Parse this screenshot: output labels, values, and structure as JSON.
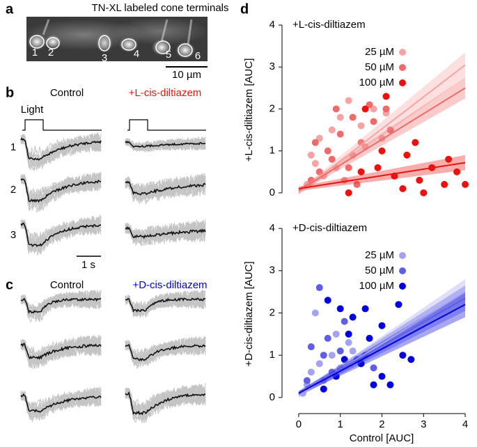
{
  "panels": {
    "a": {
      "letter": "a",
      "title": "TN-XL labeled cone terminals",
      "cells": [
        "1",
        "2",
        "3",
        "4",
        "5",
        "6"
      ],
      "scale": "10 µm"
    },
    "b": {
      "letter": "b",
      "control": "Control",
      "drug": "+L-cis-diltiazem",
      "light": "Light",
      "rows": [
        "1",
        "2",
        "3"
      ],
      "scale": "1 s"
    },
    "c": {
      "letter": "c",
      "control": "Control",
      "drug": "+D-cis-diltiazem"
    },
    "d": {
      "letter": "d"
    }
  },
  "chart_data": [
    {
      "type": "scatter",
      "title": "+L-cis-diltiazem",
      "ylabel": "+L-cis-diltiazem [AUC]",
      "xlim": [
        -0.4,
        4.2
      ],
      "ylim": [
        -0.15,
        4.1
      ],
      "yticks": [
        0,
        1,
        2,
        3,
        4
      ],
      "series": [
        {
          "name": "25 µM",
          "color": "#f5a3a3",
          "x": [
            0.3,
            0.5,
            0.8,
            1.0,
            1.2,
            1.5,
            1.8,
            2.1,
            0.6,
            0.9,
            1.3,
            1.6,
            2.0,
            0.2,
            1.1,
            0.4
          ],
          "values": [
            0.9,
            1.3,
            1.5,
            1.8,
            2.2,
            1.6,
            2.0,
            1.9,
            0.4,
            0.6,
            0.9,
            1.1,
            1.3,
            0.2,
            0.3,
            0.7
          ],
          "fit": {
            "x": [
              0,
              4
            ],
            "values": [
              0,
              3.05
            ],
            "ci": [
              0.05,
              0.3
            ]
          }
        },
        {
          "name": "50 µM",
          "color": "#ee6b6b",
          "x": [
            0.4,
            0.7,
            1.0,
            1.3,
            1.5,
            1.8,
            1.7,
            2.2,
            0.5,
            0.8,
            1.2,
            0.3,
            1.4,
            2.1,
            0.9
          ],
          "values": [
            1.2,
            1.0,
            1.4,
            1.8,
            1.2,
            1.7,
            2.1,
            1.5,
            0.5,
            0.8,
            0.6,
            0.3,
            0.2,
            2.0,
            2.0
          ],
          "fit": {
            "x": [
              0,
              4
            ],
            "values": [
              0.05,
              2.5
            ],
            "ci": [
              0.05,
              0.25
            ]
          }
        },
        {
          "name": "100 µM",
          "color": "#e8130f",
          "x": [
            1.6,
            2.1,
            1.9,
            2.3,
            2.6,
            2.9,
            3.2,
            3.5,
            3.8,
            4.0,
            2.8,
            2.5,
            3.0,
            3.6,
            1.5,
            2.0,
            1.2
          ],
          "values": [
            2.0,
            2.3,
            0.6,
            0.4,
            0.9,
            0.3,
            0.6,
            0.2,
            0.5,
            0.2,
            1.2,
            0.1,
            0.0,
            0.8,
            0.5,
            1.0,
            0.0
          ],
          "fit": {
            "x": [
              0,
              4
            ],
            "values": [
              0.1,
              0.72
            ],
            "ci": [
              0.05,
              0.18
            ]
          }
        }
      ]
    },
    {
      "type": "scatter",
      "title": "+D-cis-diltiazem",
      "ylabel": "+D-cis-diltiazem [AUC]",
      "xlabel": "Control [AUC]",
      "xlim": [
        -0.4,
        4.2
      ],
      "ylim": [
        -0.15,
        4.1
      ],
      "yticks": [
        0,
        1,
        2,
        3,
        4
      ],
      "xticks": [
        0,
        1,
        2,
        3,
        4
      ],
      "series": [
        {
          "name": "25 µM",
          "color": "#a3a3f2",
          "x": [
            0.1,
            0.3,
            0.5,
            0.8,
            1.0,
            1.3,
            0.2,
            0.6,
            1.2,
            0.4,
            1.5,
            0.9
          ],
          "values": [
            0.1,
            0.6,
            0.8,
            1.0,
            0.7,
            1.1,
            0.3,
            0.4,
            1.3,
            2.0,
            0.9,
            1.5
          ],
          "fit": {
            "x": [
              0,
              4
            ],
            "values": [
              0.05,
              2.5
            ],
            "ci": [
              0.05,
              0.3
            ]
          }
        },
        {
          "name": "50 µM",
          "color": "#5f5fe6",
          "x": [
            0.5,
            0.3,
            0.7,
            1.0,
            1.1,
            0.8,
            1.4,
            1.6,
            0.2,
            1.8,
            0.6
          ],
          "values": [
            2.6,
            1.2,
            1.4,
            1.1,
            1.8,
            0.6,
            0.9,
            1.0,
            0.4,
            0.7,
            1.0
          ],
          "fit": {
            "x": [
              0,
              4
            ],
            "values": [
              0.1,
              2.35
            ],
            "ci": [
              0.05,
              0.3
            ]
          }
        },
        {
          "name": "100 µM",
          "color": "#0000dc",
          "x": [
            0.7,
            1.0,
            1.3,
            1.6,
            2.0,
            2.4,
            1.2,
            1.5,
            1.8,
            2.2,
            2.5,
            2.0,
            0.9,
            1.1,
            1.7,
            2.7,
            0.6
          ],
          "values": [
            2.3,
            2.1,
            1.9,
            2.1,
            1.7,
            2.2,
            1.5,
            0.8,
            0.3,
            0.3,
            1.0,
            0.5,
            0.5,
            0.9,
            1.4,
            0.9,
            0.2
          ],
          "fit": {
            "x": [
              0,
              4
            ],
            "values": [
              0.1,
              2.2
            ],
            "ci": [
              0.05,
              0.3
            ]
          }
        }
      ]
    }
  ]
}
